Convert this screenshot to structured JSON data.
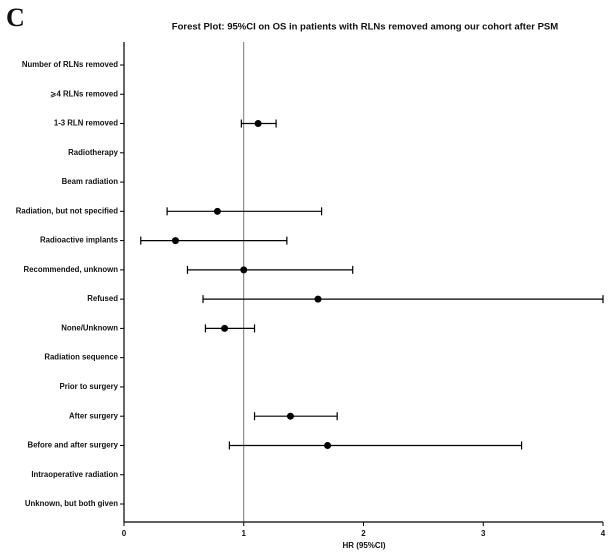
{
  "chart_data": {
    "type": "forest",
    "panel_label": "C",
    "title": "Forest Plot: 95%CI on OS in patients with RLNs removed among our cohort after PSM",
    "x_label": "HR (95%CI)",
    "categories": [
      "Number of RLNs removed",
      "⩾4 RLNs removed",
      "1-3 RLN removed",
      "Radiotherapy",
      "Beam radiation",
      "Radiation, but not specified",
      "Radioactive implants",
      "Recommended, unknown",
      "Refused",
      "None/Unknown",
      "Radiation sequence",
      "Prior to surgery",
      "After surgery",
      "Before and after surgery",
      "Intraoperative radiation",
      "Unknown, but both given"
    ],
    "values": [
      null,
      null,
      1.12,
      null,
      null,
      0.78,
      0.43,
      1.0,
      1.62,
      0.84,
      null,
      null,
      1.39,
      1.7,
      null,
      null
    ],
    "lower": [
      null,
      null,
      0.98,
      null,
      null,
      0.36,
      0.14,
      0.53,
      0.66,
      0.68,
      null,
      null,
      1.09,
      0.88,
      null,
      null
    ],
    "upper": [
      null,
      null,
      1.27,
      null,
      null,
      1.65,
      1.36,
      1.91,
      4,
      1.09,
      null,
      null,
      1.78,
      3.32,
      null,
      null
    ],
    "xlim": [
      0,
      4
    ],
    "xticks": [
      0,
      1,
      2,
      3,
      4
    ],
    "ref_line": 1,
    "color": "#000000"
  }
}
